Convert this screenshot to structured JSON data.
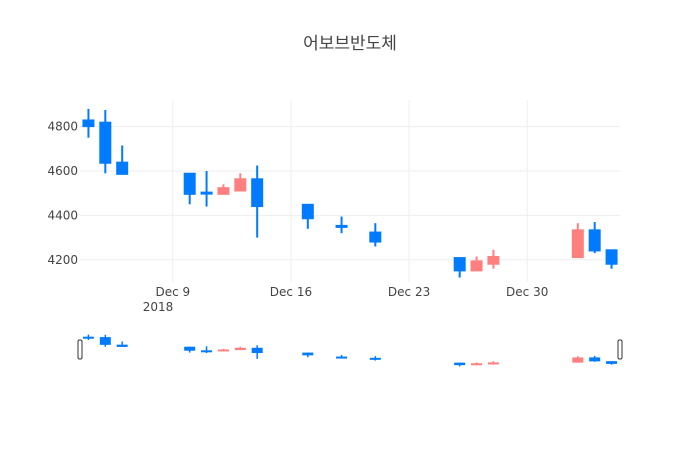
{
  "chart_data": {
    "type": "candlestick",
    "title": "어보브반도체",
    "xlabel": "",
    "ylabel": "",
    "x_ticks": [
      "Dec 9",
      "Dec 16",
      "Dec 23",
      "Dec 30"
    ],
    "x_year_label": "2018",
    "y_ticks": [
      4200,
      4400,
      4600,
      4800
    ],
    "ylim": [
      4100,
      4920
    ],
    "xlim": [
      "2018-12-04",
      "2019-01-04"
    ],
    "grid": true,
    "rangeslider": true,
    "colors": {
      "increasing": "#ff7f7f",
      "decreasing": "#007bff",
      "grid": "#eeeeee"
    },
    "candles": [
      {
        "date": "2018-12-04",
        "open": 4830,
        "high": 4880,
        "low": 4750,
        "close": 4800
      },
      {
        "date": "2018-12-05",
        "open": 4820,
        "high": 4875,
        "low": 4590,
        "close": 4635
      },
      {
        "date": "2018-12-06",
        "open": 4640,
        "high": 4715,
        "low": 4585,
        "close": 4585
      },
      {
        "date": "2018-12-10",
        "open": 4590,
        "high": 4590,
        "low": 4450,
        "close": 4495
      },
      {
        "date": "2018-12-11",
        "open": 4505,
        "high": 4600,
        "low": 4440,
        "close": 4500
      },
      {
        "date": "2018-12-12",
        "open": 4495,
        "high": 4540,
        "low": 4495,
        "close": 4525
      },
      {
        "date": "2018-12-13",
        "open": 4510,
        "high": 4590,
        "low": 4510,
        "close": 4565
      },
      {
        "date": "2018-12-14",
        "open": 4565,
        "high": 4625,
        "low": 4300,
        "close": 4440
      },
      {
        "date": "2018-12-17",
        "open": 4450,
        "high": 4450,
        "low": 4340,
        "close": 4385
      },
      {
        "date": "2018-12-19",
        "open": 4355,
        "high": 4395,
        "low": 4320,
        "close": 4350
      },
      {
        "date": "2018-12-21",
        "open": 4325,
        "high": 4365,
        "low": 4260,
        "close": 4280
      },
      {
        "date": "2018-12-26",
        "open": 4210,
        "high": 4210,
        "low": 4120,
        "close": 4150
      },
      {
        "date": "2018-12-27",
        "open": 4150,
        "high": 4215,
        "low": 4150,
        "close": 4195
      },
      {
        "date": "2018-12-28",
        "open": 4180,
        "high": 4245,
        "low": 4160,
        "close": 4215
      },
      {
        "date": "2019-01-02",
        "open": 4210,
        "high": 4365,
        "low": 4210,
        "close": 4335
      },
      {
        "date": "2019-01-03",
        "open": 4335,
        "high": 4370,
        "low": 4230,
        "close": 4240
      },
      {
        "date": "2019-01-04",
        "open": 4245,
        "high": 4245,
        "low": 4160,
        "close": 4180
      }
    ]
  }
}
